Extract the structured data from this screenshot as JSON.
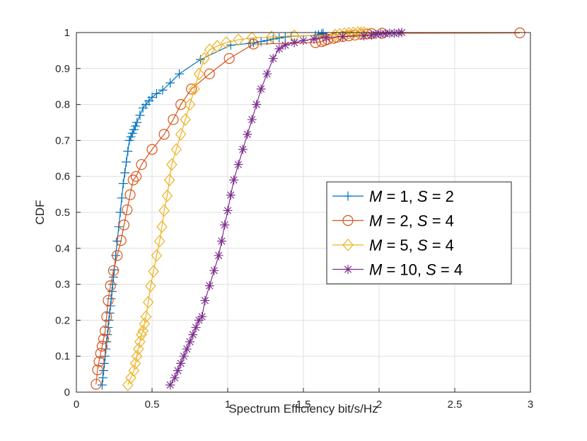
{
  "chart_data": {
    "type": "line",
    "title": "",
    "xlabel": "Spectrum Efficiency bit/s/Hz",
    "ylabel": "CDF",
    "xlim": [
      0,
      3
    ],
    "ylim": [
      0,
      1
    ],
    "xticks": [
      "0",
      "0.5",
      "1",
      "1.5",
      "2",
      "2.5",
      "3"
    ],
    "yticks": [
      "0",
      "0.1",
      "0.2",
      "0.3",
      "0.4",
      "0.5",
      "0.6",
      "0.7",
      "0.8",
      "0.9",
      "1"
    ],
    "grid": true,
    "legend_position": "center-right",
    "series": [
      {
        "name": "M = 1,  S = 2",
        "legend": {
          "m": "1",
          "s": "2"
        },
        "color": "#0072BD",
        "marker": "plus",
        "x": [
          0.17,
          0.175,
          0.18,
          0.185,
          0.19,
          0.195,
          0.2,
          0.205,
          0.21,
          0.215,
          0.22,
          0.225,
          0.23,
          0.235,
          0.24,
          0.245,
          0.25,
          0.26,
          0.27,
          0.28,
          0.29,
          0.3,
          0.31,
          0.32,
          0.33,
          0.34,
          0.35,
          0.36,
          0.37,
          0.38,
          0.39,
          0.4,
          0.42,
          0.44,
          0.46,
          0.48,
          0.5,
          0.53,
          0.57,
          0.62,
          0.68,
          0.82,
          1.02,
          1.15,
          1.17,
          1.22,
          1.26,
          1.3,
          1.34,
          1.38,
          1.42,
          1.58,
          1.6,
          1.62,
          1.63
        ],
        "y": [
          0.02,
          0.04,
          0.06,
          0.08,
          0.1,
          0.12,
          0.14,
          0.16,
          0.18,
          0.2,
          0.22,
          0.24,
          0.26,
          0.28,
          0.3,
          0.32,
          0.34,
          0.38,
          0.42,
          0.46,
          0.5,
          0.54,
          0.58,
          0.61,
          0.64,
          0.67,
          0.7,
          0.71,
          0.72,
          0.73,
          0.74,
          0.75,
          0.77,
          0.79,
          0.8,
          0.81,
          0.82,
          0.83,
          0.84,
          0.86,
          0.885,
          0.925,
          0.965,
          0.97,
          0.972,
          0.975,
          0.978,
          0.982,
          0.985,
          0.988,
          0.99,
          0.992,
          0.994,
          0.996,
          0.998
        ]
      },
      {
        "name": "M = 2,  S = 4",
        "legend": {
          "m": "2",
          "s": "4"
        },
        "color": "#D95319",
        "marker": "circle",
        "x": [
          0.13,
          0.14,
          0.15,
          0.16,
          0.17,
          0.18,
          0.19,
          0.2,
          0.21,
          0.225,
          0.245,
          0.27,
          0.295,
          0.315,
          0.335,
          0.355,
          0.375,
          0.395,
          0.43,
          0.5,
          0.58,
          0.64,
          0.69,
          0.76,
          0.88,
          1.01,
          1.17,
          1.58,
          1.62,
          1.64,
          1.66,
          1.7,
          1.72,
          1.76,
          1.8,
          1.84,
          1.88,
          1.92,
          1.95,
          2.02,
          2.93
        ],
        "y": [
          0.022,
          0.062,
          0.085,
          0.108,
          0.128,
          0.148,
          0.17,
          0.21,
          0.255,
          0.296,
          0.338,
          0.38,
          0.422,
          0.465,
          0.507,
          0.549,
          0.59,
          0.6,
          0.633,
          0.675,
          0.717,
          0.758,
          0.8,
          0.843,
          0.885,
          0.928,
          0.968,
          0.972,
          0.975,
          0.978,
          0.981,
          0.984,
          0.987,
          0.989,
          0.991,
          0.993,
          0.995,
          0.996,
          0.997,
          0.998,
          0.999
        ]
      },
      {
        "name": "M = 5,  S = 4",
        "legend": {
          "m": "5",
          "s": "4"
        },
        "color": "#EDB120",
        "marker": "diamond",
        "x": [
          0.34,
          0.36,
          0.38,
          0.39,
          0.4,
          0.41,
          0.42,
          0.43,
          0.44,
          0.45,
          0.46,
          0.475,
          0.49,
          0.51,
          0.53,
          0.55,
          0.565,
          0.58,
          0.6,
          0.615,
          0.63,
          0.66,
          0.69,
          0.72,
          0.75,
          0.78,
          0.81,
          0.845,
          0.88,
          0.93,
          0.99,
          1.07,
          1.16,
          1.29,
          1.44,
          1.71,
          1.74,
          1.77,
          1.8,
          1.83,
          1.86,
          1.88,
          1.9
        ],
        "y": [
          0.02,
          0.04,
          0.06,
          0.08,
          0.1,
          0.12,
          0.14,
          0.16,
          0.17,
          0.19,
          0.21,
          0.25,
          0.295,
          0.336,
          0.38,
          0.42,
          0.46,
          0.505,
          0.546,
          0.59,
          0.633,
          0.675,
          0.717,
          0.758,
          0.8,
          0.843,
          0.885,
          0.928,
          0.952,
          0.962,
          0.972,
          0.98,
          0.985,
          0.988,
          0.991,
          0.993,
          0.995,
          0.997,
          0.998,
          0.999,
          1.0,
          0.999,
          1.0
        ]
      },
      {
        "name": "M = 10,  S = 4",
        "legend": {
          "m": "10",
          "s": "4"
        },
        "color": "#7E2F8E",
        "marker": "asterisk",
        "x": [
          0.62,
          0.65,
          0.67,
          0.69,
          0.71,
          0.73,
          0.75,
          0.77,
          0.79,
          0.81,
          0.83,
          0.85,
          0.88,
          0.91,
          0.94,
          0.96,
          0.98,
          1.0,
          1.02,
          1.04,
          1.07,
          1.1,
          1.13,
          1.16,
          1.19,
          1.22,
          1.26,
          1.3,
          1.34,
          1.38,
          1.44,
          1.5,
          1.57,
          1.65,
          1.76,
          1.9,
          1.95,
          1.98,
          2.01,
          2.04,
          2.07,
          2.1,
          2.13,
          2.15
        ],
        "y": [
          0.02,
          0.04,
          0.06,
          0.08,
          0.1,
          0.12,
          0.14,
          0.16,
          0.18,
          0.2,
          0.21,
          0.255,
          0.296,
          0.338,
          0.38,
          0.42,
          0.465,
          0.505,
          0.548,
          0.59,
          0.633,
          0.675,
          0.717,
          0.758,
          0.8,
          0.843,
          0.885,
          0.928,
          0.955,
          0.965,
          0.972,
          0.978,
          0.982,
          0.986,
          0.989,
          0.991,
          0.993,
          0.995,
          0.996,
          0.997,
          0.998,
          0.998,
          0.999,
          1.0
        ]
      }
    ]
  }
}
